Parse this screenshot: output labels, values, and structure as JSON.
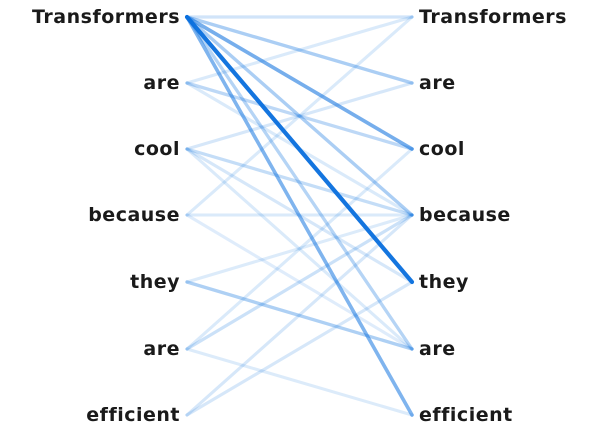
{
  "source_tokens": [
    "Transformers",
    "are",
    "cool",
    "because",
    "they",
    "are",
    "efficient"
  ],
  "target_tokens": [
    "Transformers",
    "are",
    "cool",
    "because",
    "they",
    "are",
    "efficient"
  ],
  "colors": {
    "link": "#0a6fde",
    "text": "#1a1a1a",
    "background": "#ffffff"
  },
  "attention_links": [
    {
      "from": 0,
      "to": 0,
      "weight": 0.12
    },
    {
      "from": 0,
      "to": 1,
      "weight": 0.3
    },
    {
      "from": 0,
      "to": 2,
      "weight": 0.55
    },
    {
      "from": 0,
      "to": 3,
      "weight": 0.3
    },
    {
      "from": 0,
      "to": 4,
      "weight": 1.0
    },
    {
      "from": 0,
      "to": 5,
      "weight": 0.25
    },
    {
      "from": 0,
      "to": 6,
      "weight": 0.5
    },
    {
      "from": 1,
      "to": 0,
      "weight": 0.08
    },
    {
      "from": 1,
      "to": 2,
      "weight": 0.22
    },
    {
      "from": 1,
      "to": 3,
      "weight": 0.08
    },
    {
      "from": 2,
      "to": 1,
      "weight": 0.1
    },
    {
      "from": 2,
      "to": 3,
      "weight": 0.18
    },
    {
      "from": 2,
      "to": 4,
      "weight": 0.1
    },
    {
      "from": 2,
      "to": 5,
      "weight": 0.08
    },
    {
      "from": 3,
      "to": 0,
      "weight": 0.08
    },
    {
      "from": 3,
      "to": 3,
      "weight": 0.08
    },
    {
      "from": 3,
      "to": 5,
      "weight": 0.06
    },
    {
      "from": 4,
      "to": 5,
      "weight": 0.28
    },
    {
      "from": 4,
      "to": 3,
      "weight": 0.07
    },
    {
      "from": 5,
      "to": 3,
      "weight": 0.15
    },
    {
      "from": 5,
      "to": 2,
      "weight": 0.08
    },
    {
      "from": 5,
      "to": 6,
      "weight": 0.07
    },
    {
      "from": 6,
      "to": 3,
      "weight": 0.1
    },
    {
      "from": 6,
      "to": 4,
      "weight": 0.1
    }
  ]
}
